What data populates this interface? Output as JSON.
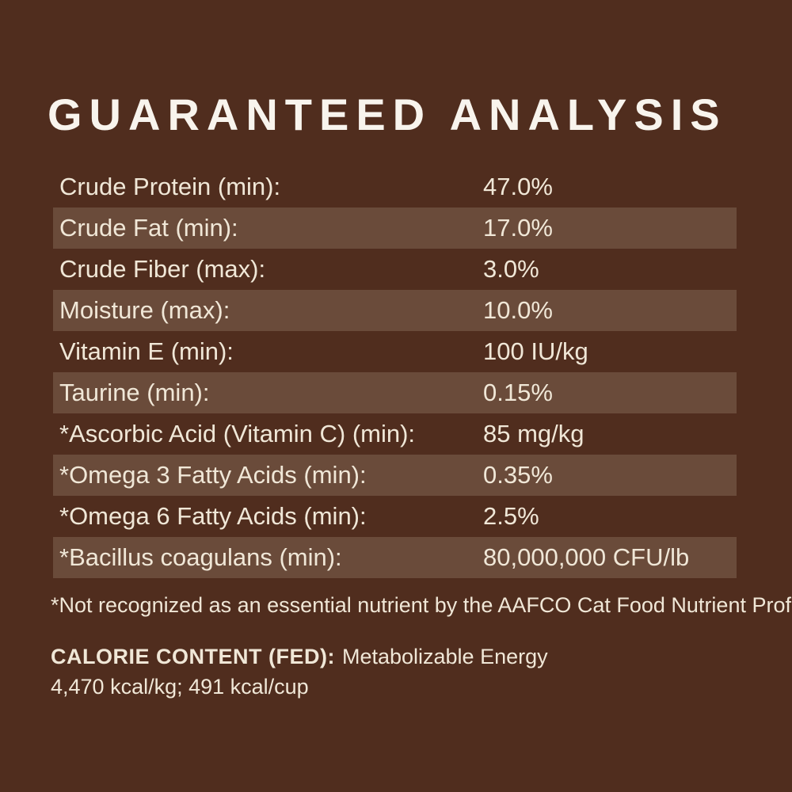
{
  "page": {
    "background_color": "#502d1e",
    "stripe_color": "#6a4b3a",
    "text_color": "#f0e7d7",
    "title_color": "#f8f4ed"
  },
  "title": "GUARANTEED ANALYSIS",
  "analysis_table": {
    "rows": [
      {
        "label": "Crude Protein (min):",
        "value": "47.0%"
      },
      {
        "label": "Crude Fat (min):",
        "value": "17.0%"
      },
      {
        "label": "Crude Fiber (max):",
        "value": "3.0%"
      },
      {
        "label": "Moisture (max):",
        "value": "10.0%"
      },
      {
        "label": "Vitamin E (min):",
        "value": "100 IU/kg"
      },
      {
        "label": "Taurine (min):",
        "value": "0.15%"
      },
      {
        "label": "*Ascorbic Acid (Vitamin C) (min):",
        "value": "85 mg/kg"
      },
      {
        "label": "*Omega 3 Fatty Acids (min):",
        "value": "0.35%"
      },
      {
        "label": "*Omega 6 Fatty Acids (min):",
        "value": "2.5%"
      },
      {
        "label": "*Bacillus coagulans (min):",
        "value": "80,000,000 CFU/lb"
      }
    ]
  },
  "footnote": "*Not recognized as an essential nutrient by the AAFCO Cat Food Nutrient Profiles.",
  "calorie_content": {
    "heading": "CALORIE CONTENT (FED):",
    "description": "Metabolizable Energy",
    "values": "4,470 kcal/kg; 491 kcal/cup"
  }
}
